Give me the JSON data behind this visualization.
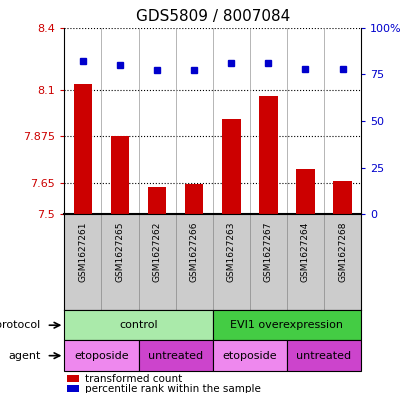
{
  "title": "GDS5809 / 8007084",
  "samples": [
    "GSM1627261",
    "GSM1627265",
    "GSM1627262",
    "GSM1627266",
    "GSM1627263",
    "GSM1627267",
    "GSM1627264",
    "GSM1627268"
  ],
  "transformed_counts": [
    8.13,
    7.875,
    7.63,
    7.645,
    7.96,
    8.07,
    7.72,
    7.66
  ],
  "percentile_ranks": [
    82,
    80,
    77,
    77,
    81,
    81,
    78,
    78
  ],
  "ylim": [
    7.5,
    8.4
  ],
  "yticks_left": [
    7.5,
    7.65,
    7.875,
    8.1,
    8.4
  ],
  "yticks_right": [
    0,
    25,
    50,
    75,
    100
  ],
  "yticks_right_labels": [
    "0",
    "25",
    "50",
    "75",
    "100%"
  ],
  "protocol_groups": [
    {
      "label": "control",
      "start": 0,
      "end": 4,
      "color": "#aaeaaa"
    },
    {
      "label": "EVI1 overexpression",
      "start": 4,
      "end": 8,
      "color": "#44cc44"
    }
  ],
  "agent_groups": [
    {
      "label": "etoposide",
      "start": 0,
      "end": 2,
      "color": "#ee88ee"
    },
    {
      "label": "untreated",
      "start": 2,
      "end": 4,
      "color": "#cc44cc"
    },
    {
      "label": "etoposide",
      "start": 4,
      "end": 6,
      "color": "#ee88ee"
    },
    {
      "label": "untreated",
      "start": 6,
      "end": 8,
      "color": "#cc44cc"
    }
  ],
  "bar_color": "#cc0000",
  "dot_color": "#0000cc",
  "bar_width": 0.5,
  "bg_color": "#ffffff",
  "sample_bg": "#cccccc",
  "ytick_left_color": "#cc0000",
  "ytick_right_color": "#0000cc"
}
